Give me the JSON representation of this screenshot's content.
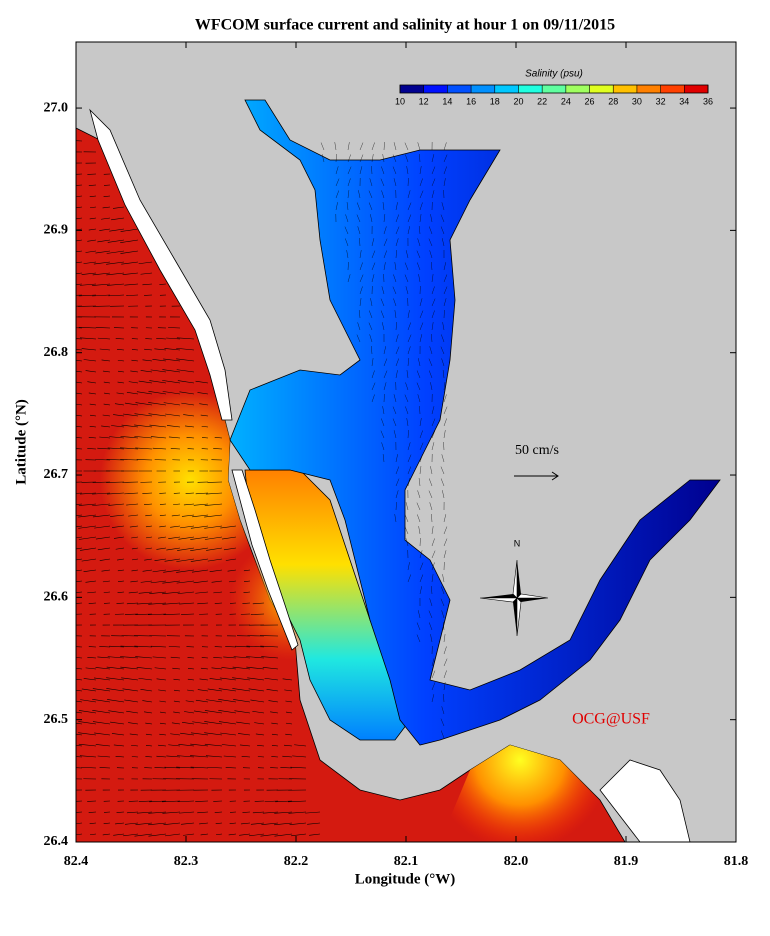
{
  "chart_data": {
    "type": "map",
    "title": "WFCOM surface current and salinity at hour 1 on 09/11/2015",
    "xlabel": "Longitude (°W)",
    "ylabel": "Latitude (°N)",
    "xlim": [
      82.4,
      81.8
    ],
    "ylim": [
      26.4,
      27.054
    ],
    "xticks": [
      82.4,
      82.3,
      82.2,
      82.1,
      {
        "value": 82,
        "label": "82.0"
      },
      81.9,
      81.8
    ],
    "yticks": [
      26.4,
      26.5,
      26.6,
      26.7,
      26.8,
      26.9,
      {
        "value": 27,
        "label": "27.0"
      }
    ],
    "colorbar": {
      "title": "Salinity (psu)",
      "ticks": [
        10,
        12,
        14,
        16,
        18,
        20,
        22,
        24,
        26,
        28,
        30,
        32,
        34,
        36
      ],
      "colors": [
        "#00008f",
        "#0010ff",
        "#0050ff",
        "#0090ff",
        "#00c8ff",
        "#20ffe0",
        "#60ffa0",
        "#a0ff60",
        "#e0ff20",
        "#ffc000",
        "#ff8000",
        "#ff4000",
        "#e00000",
        "#a00000"
      ]
    },
    "scale_label": "50 cm/s",
    "north_label": "N",
    "credit": "OCG@USF",
    "land_color": "#c8c8c8",
    "gulf_color": "#d41a10",
    "estuary_color": "#00008f"
  }
}
